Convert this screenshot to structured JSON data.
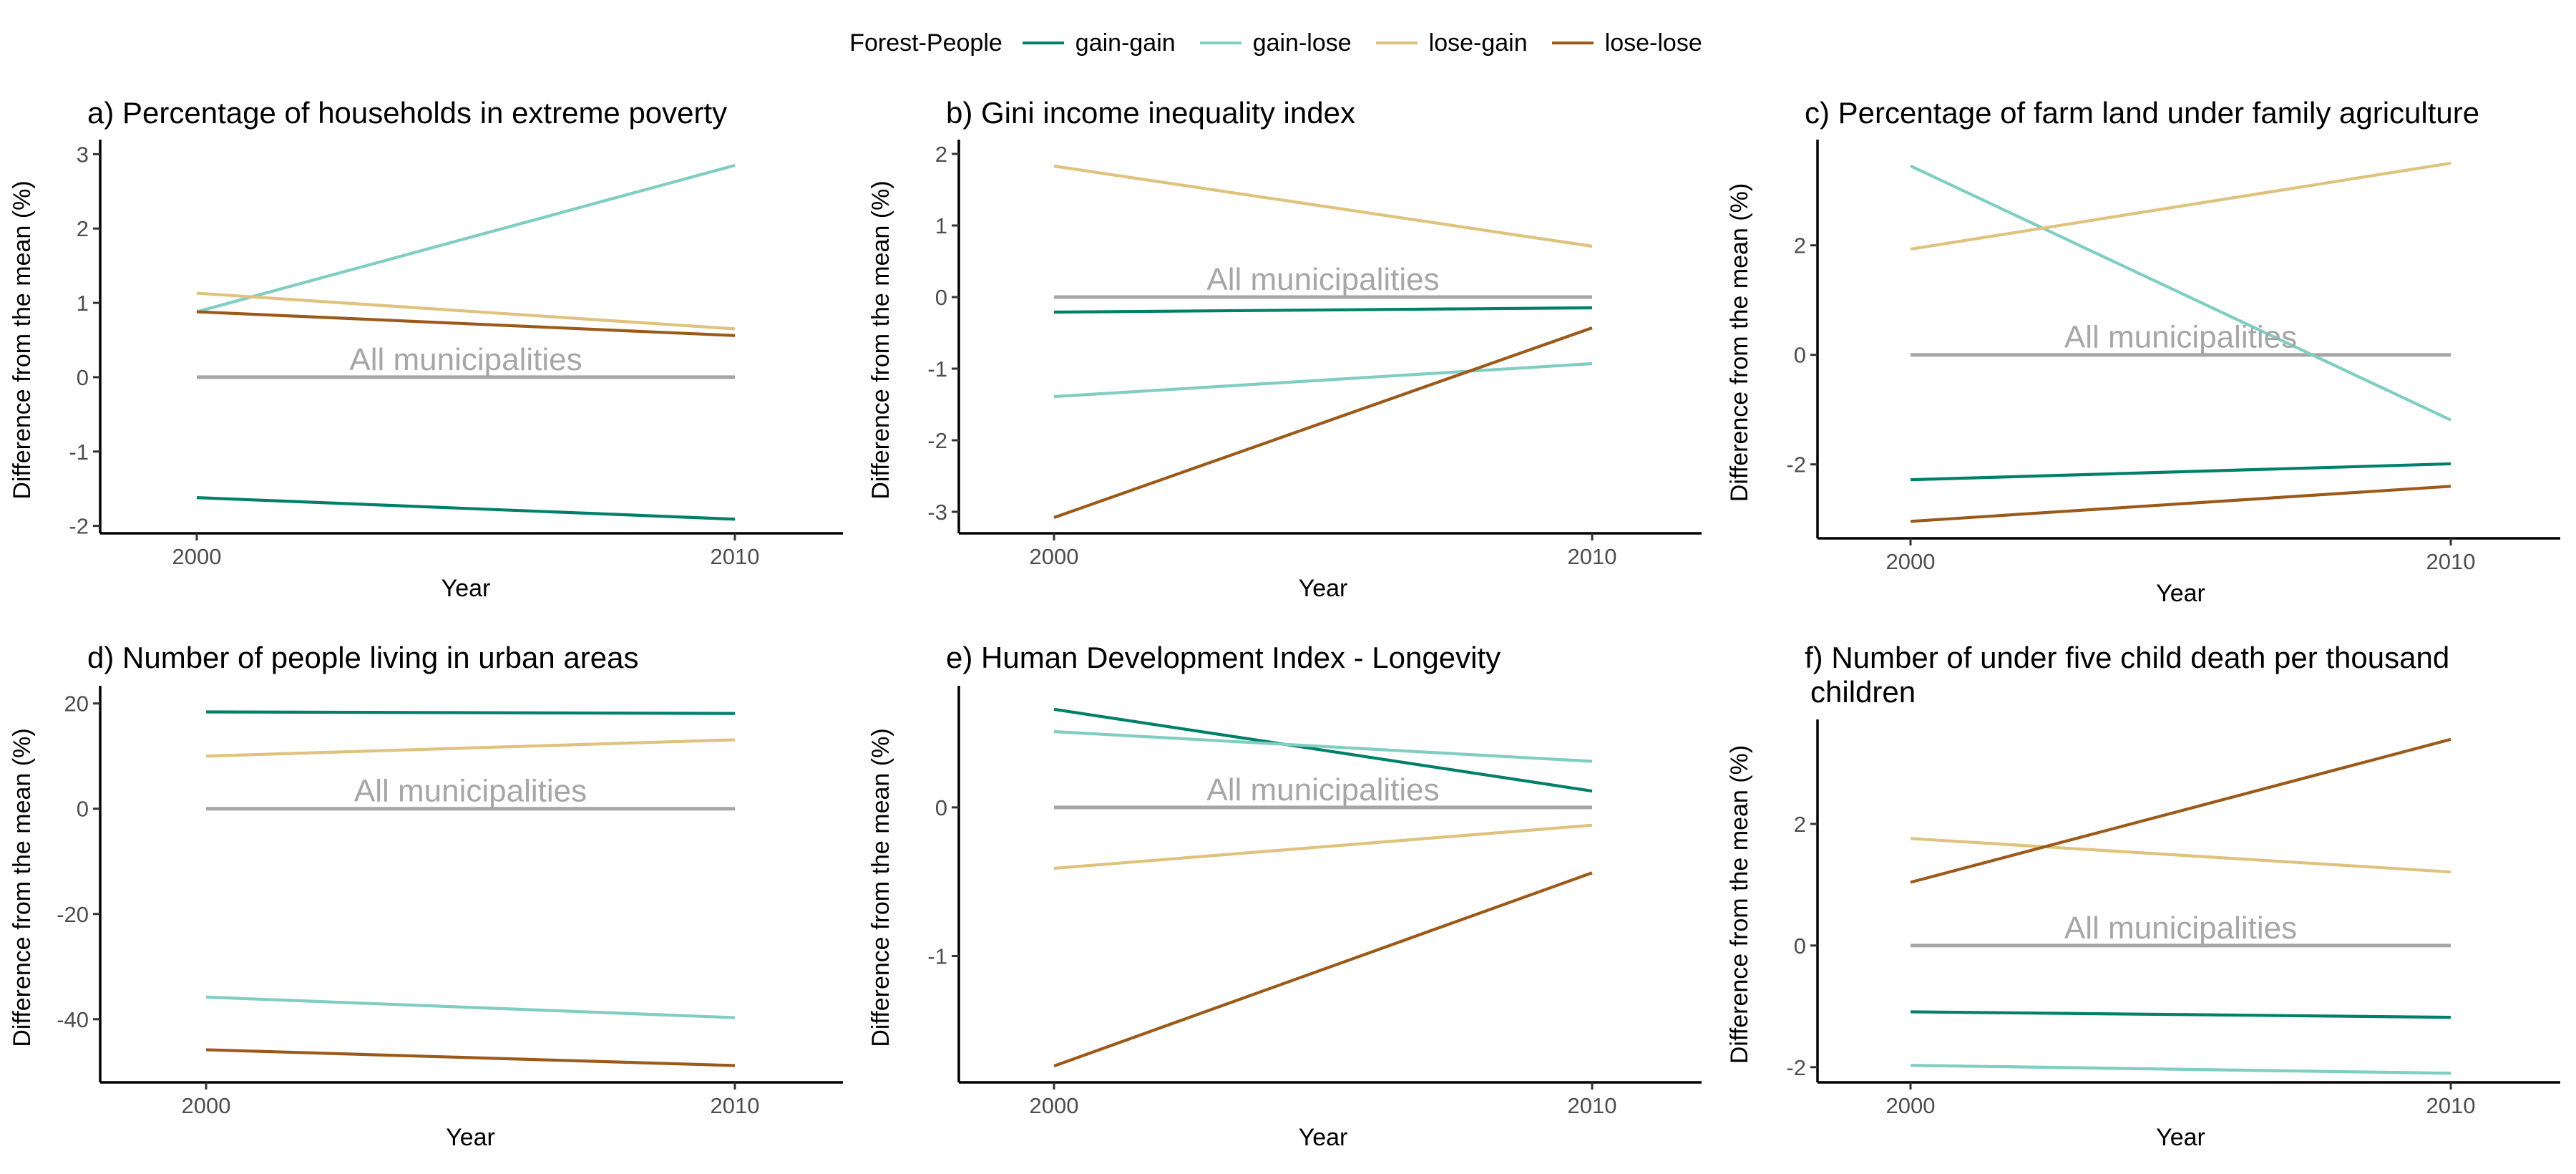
{
  "legend": {
    "title": "Forest-People",
    "items": [
      {
        "label": "gain-gain",
        "color": "#00806a"
      },
      {
        "label": "gain-lose",
        "color": "#80cdc1"
      },
      {
        "label": "lose-gain",
        "color": "#dfc27d"
      },
      {
        "label": "lose-lose",
        "color": "#9c5a1a"
      }
    ]
  },
  "reference_color": "#a6a6a6",
  "chart_data": [
    {
      "type": "line",
      "title": "a) Percentage of households in extreme poverty",
      "xlabel": "Year",
      "ylabel": "Difference from the mean (%)",
      "x": [
        2000,
        2010
      ],
      "ylim": [
        -2.1,
        3.1
      ],
      "yticks": [
        -2,
        -1,
        0,
        1,
        2,
        3
      ],
      "reference_label": "All municipalities",
      "series": [
        {
          "name": "gain-gain",
          "values": [
            -1.62,
            -1.91
          ]
        },
        {
          "name": "gain-lose",
          "values": [
            0.88,
            2.85
          ]
        },
        {
          "name": "lose-gain",
          "values": [
            1.13,
            0.65
          ]
        },
        {
          "name": "lose-lose",
          "values": [
            0.88,
            0.56
          ]
        },
        {
          "name": "All municipalities",
          "values": [
            0,
            0
          ]
        }
      ]
    },
    {
      "type": "line",
      "title": "b) Gini income inequality index",
      "xlabel": "Year",
      "ylabel": "Difference from the mean (%)",
      "x": [
        2000,
        2010
      ],
      "ylim": [
        -3.3,
        2.1
      ],
      "yticks": [
        -3,
        -2,
        -1,
        0,
        1,
        2
      ],
      "reference_label": "All municipalities",
      "series": [
        {
          "name": "gain-gain",
          "values": [
            -0.21,
            -0.15
          ]
        },
        {
          "name": "gain-lose",
          "values": [
            -1.39,
            -0.93
          ]
        },
        {
          "name": "lose-gain",
          "values": [
            1.83,
            0.71
          ]
        },
        {
          "name": "lose-lose",
          "values": [
            -3.08,
            -0.43
          ]
        },
        {
          "name": "All municipalities",
          "values": [
            0,
            0
          ]
        }
      ]
    },
    {
      "type": "line",
      "title": "c) Percentage of farm land under family agriculture",
      "xlabel": "Year",
      "ylabel": "Difference from the mean (%)",
      "x": [
        2000,
        2010
      ],
      "ylim": [
        -3.35,
        3.8
      ],
      "yticks": [
        -2,
        0,
        2
      ],
      "reference_label": "All municipalities",
      "series": [
        {
          "name": "gain-gain",
          "values": [
            -2.28,
            -1.99
          ]
        },
        {
          "name": "gain-lose",
          "values": [
            3.45,
            -1.19
          ]
        },
        {
          "name": "lose-gain",
          "values": [
            1.93,
            3.5
          ]
        },
        {
          "name": "lose-lose",
          "values": [
            -3.04,
            -2.4
          ]
        },
        {
          "name": "All municipalities",
          "values": [
            0,
            0
          ]
        }
      ]
    },
    {
      "type": "line",
      "title": "d) Number of people living in urban areas",
      "xlabel": "Year",
      "ylabel": "Difference from the mean (%)",
      "x": [
        2000,
        2010
      ],
      "ylim": [
        -52,
        22
      ],
      "yticks": [
        -40,
        -20,
        0,
        20
      ],
      "reference_label": "All municipalities",
      "series": [
        {
          "name": "gain-gain",
          "values": [
            18.4,
            18.1
          ]
        },
        {
          "name": "gain-lose",
          "values": [
            -35.8,
            -39.7
          ]
        },
        {
          "name": "lose-gain",
          "values": [
            10.0,
            13.1
          ]
        },
        {
          "name": "lose-lose",
          "values": [
            -45.8,
            -48.8
          ]
        },
        {
          "name": "All municipalities",
          "values": [
            0,
            0
          ]
        }
      ]
    },
    {
      "type": "line",
      "title": "e) Human Development Index - Longevity",
      "xlabel": "Year",
      "ylabel": "Difference from the mean (%)",
      "x": [
        2000,
        2010
      ],
      "ylim": [
        -1.85,
        0.77
      ],
      "yticks": [
        -1,
        0
      ],
      "reference_label": "All municipalities",
      "series": [
        {
          "name": "gain-gain",
          "values": [
            0.66,
            0.11
          ]
        },
        {
          "name": "gain-lose",
          "values": [
            0.51,
            0.31
          ]
        },
        {
          "name": "lose-gain",
          "values": [
            -0.41,
            -0.12
          ]
        },
        {
          "name": "lose-lose",
          "values": [
            -1.74,
            -0.44
          ]
        },
        {
          "name": "All municipalities",
          "values": [
            0,
            0
          ]
        }
      ]
    },
    {
      "type": "line",
      "title": "f) Number of under five child death per thousand children",
      "xlabel": "Year",
      "ylabel": "Difference from the mean (%)",
      "x": [
        2000,
        2010
      ],
      "ylim": [
        -2.25,
        3.6
      ],
      "yticks": [
        -2,
        0,
        2
      ],
      "reference_label": "All municipalities",
      "series": [
        {
          "name": "gain-gain",
          "values": [
            -1.09,
            -1.18
          ]
        },
        {
          "name": "gain-lose",
          "values": [
            -1.97,
            -2.1
          ]
        },
        {
          "name": "lose-gain",
          "values": [
            1.76,
            1.21
          ]
        },
        {
          "name": "lose-lose",
          "values": [
            1.04,
            3.39
          ]
        },
        {
          "name": "All municipalities",
          "values": [
            0,
            0
          ]
        }
      ]
    }
  ]
}
